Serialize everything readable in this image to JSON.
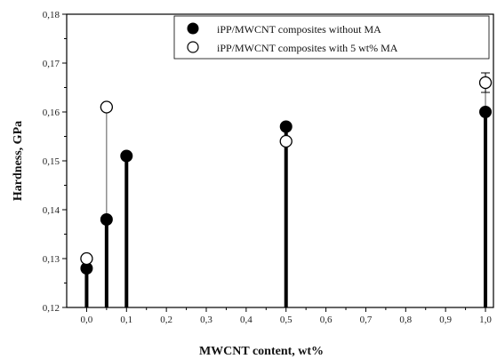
{
  "chart_data": {
    "type": "scatter",
    "xlabel": "MWCNT content, wt%",
    "ylabel": "Hardness, GPa",
    "xlim": [
      -0.05,
      1.02
    ],
    "ylim": [
      0.12,
      0.18
    ],
    "x_ticks": [
      "0,0",
      "0,1",
      "0,2",
      "0,3",
      "0,4",
      "0,5",
      "0,6",
      "0,7",
      "0,8",
      "0,9",
      "1,0"
    ],
    "y_ticks": [
      "0,12",
      "0,13",
      "0,14",
      "0,15",
      "0,16",
      "0,17",
      "0,18"
    ],
    "legend_position": "top-right",
    "grid": false,
    "series": [
      {
        "name": "iPP/MWCNT composites without MA",
        "marker": "filled-circle",
        "color": "#000000",
        "x": [
          0.0,
          0.05,
          0.1,
          0.5,
          1.0
        ],
        "y": [
          0.128,
          0.138,
          0.151,
          0.157,
          0.16
        ]
      },
      {
        "name": "iPP/MWCNT composites with 5 wt% MA",
        "marker": "open-circle",
        "color": "#000000",
        "x": [
          0.0,
          0.05,
          0.5,
          1.0
        ],
        "y": [
          0.13,
          0.161,
          0.154,
          0.166
        ],
        "error": [
          null,
          null,
          null,
          0.002
        ]
      }
    ]
  }
}
